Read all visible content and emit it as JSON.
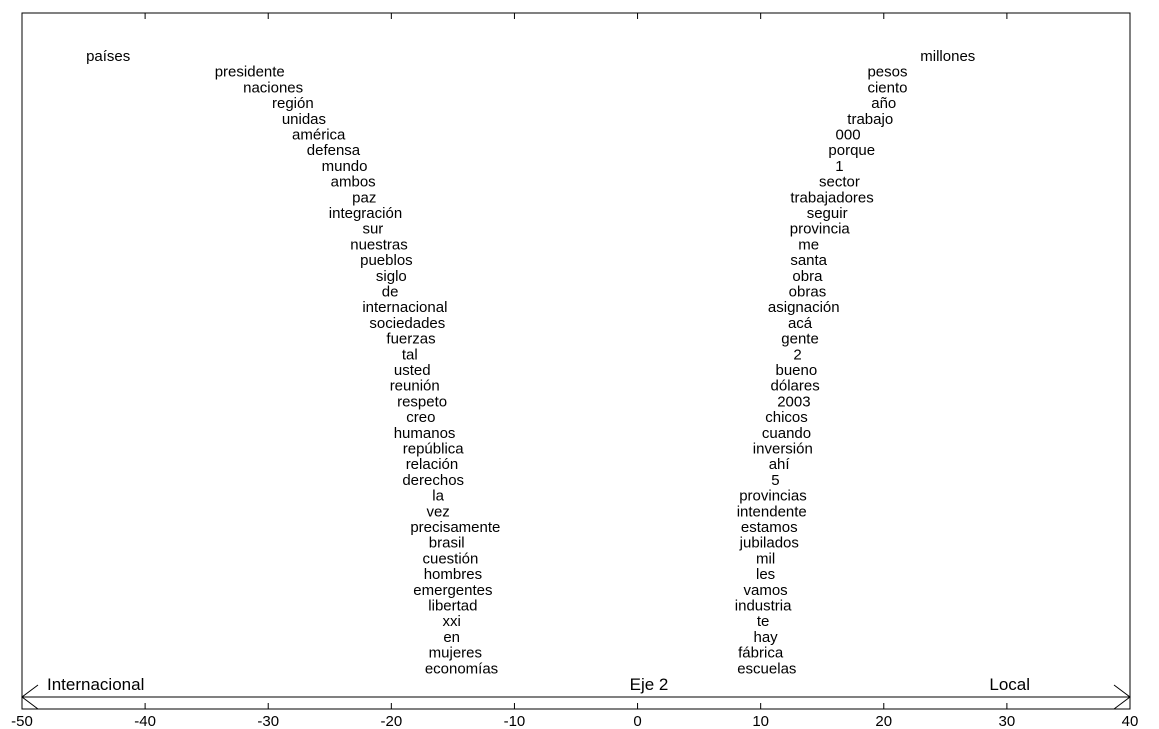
{
  "chart_data": {
    "type": "scatter",
    "xlabel": "Eje 2",
    "left_pole_label": "Internacional",
    "right_pole_label": "Local",
    "xlim": [
      -50,
      40
    ],
    "x_ticks": [
      "-50",
      "-40",
      "-30",
      "-20",
      "-10",
      "0",
      "10",
      "20",
      "30",
      "40"
    ],
    "grid": false,
    "left_words": [
      {
        "word": "países",
        "x": -43.0
      },
      {
        "word": "presidente",
        "x": -31.5
      },
      {
        "word": "naciones",
        "x": -29.6
      },
      {
        "word": "región",
        "x": -28.0
      },
      {
        "word": "unidas",
        "x": -27.1
      },
      {
        "word": "américa",
        "x": -25.9
      },
      {
        "word": "defensa",
        "x": -24.7
      },
      {
        "word": "mundo",
        "x": -23.8
      },
      {
        "word": "ambos",
        "x": -23.1
      },
      {
        "word": "paz",
        "x": -22.2
      },
      {
        "word": "integración",
        "x": -22.1
      },
      {
        "word": "sur",
        "x": -21.5
      },
      {
        "word": "nuestras",
        "x": -21.0
      },
      {
        "word": "pueblos",
        "x": -20.4
      },
      {
        "word": "siglo",
        "x": -20.0
      },
      {
        "word": "de",
        "x": -20.1
      },
      {
        "word": "internacional",
        "x": -18.9
      },
      {
        "word": "sociedades",
        "x": -18.7
      },
      {
        "word": "fuerzas",
        "x": -18.4
      },
      {
        "word": "tal",
        "x": -18.5
      },
      {
        "word": "usted",
        "x": -18.3
      },
      {
        "word": "reunión",
        "x": -18.1
      },
      {
        "word": "respeto",
        "x": -17.5
      },
      {
        "word": "creo",
        "x": -17.6
      },
      {
        "word": "humanos",
        "x": -17.3
      },
      {
        "word": "república",
        "x": -16.6
      },
      {
        "word": "relación",
        "x": -16.7
      },
      {
        "word": "derechos",
        "x": -16.6
      },
      {
        "word": "la",
        "x": -16.2
      },
      {
        "word": "vez",
        "x": -16.2
      },
      {
        "word": "precisamente",
        "x": -14.8
      },
      {
        "word": "brasil",
        "x": -15.5
      },
      {
        "word": "cuestión",
        "x": -15.2
      },
      {
        "word": "hombres",
        "x": -15.0
      },
      {
        "word": "emergentes",
        "x": -15.0
      },
      {
        "word": "libertad",
        "x": -15.0
      },
      {
        "word": "xxi",
        "x": -15.1
      },
      {
        "word": "en",
        "x": -15.1
      },
      {
        "word": "mujeres",
        "x": -14.8
      },
      {
        "word": "economías",
        "x": -14.3
      }
    ],
    "right_words": [
      {
        "word": "millones",
        "x": 25.2
      },
      {
        "word": "pesos",
        "x": 20.3
      },
      {
        "word": "ciento",
        "x": 20.3
      },
      {
        "word": "año",
        "x": 20.0
      },
      {
        "word": "trabajo",
        "x": 18.9
      },
      {
        "word": "000",
        "x": 17.1
      },
      {
        "word": "porque",
        "x": 17.4
      },
      {
        "word": "1",
        "x": 16.4
      },
      {
        "word": "sector",
        "x": 16.4
      },
      {
        "word": "trabajadores",
        "x": 15.8
      },
      {
        "word": "seguir",
        "x": 15.4
      },
      {
        "word": "provincia",
        "x": 14.8
      },
      {
        "word": "me",
        "x": 13.9
      },
      {
        "word": "santa",
        "x": 13.9
      },
      {
        "word": "obra",
        "x": 13.8
      },
      {
        "word": "obras",
        "x": 13.8
      },
      {
        "word": "asignación",
        "x": 13.5
      },
      {
        "word": "acá",
        "x": 13.2
      },
      {
        "word": "gente",
        "x": 13.2
      },
      {
        "word": "2",
        "x": 13.0
      },
      {
        "word": "bueno",
        "x": 12.9
      },
      {
        "word": "dólares",
        "x": 12.8
      },
      {
        "word": "2003",
        "x": 12.7
      },
      {
        "word": "chicos",
        "x": 12.1
      },
      {
        "word": "cuando",
        "x": 12.1
      },
      {
        "word": "inversión",
        "x": 11.8
      },
      {
        "word": "ahí",
        "x": 11.5
      },
      {
        "word": "5",
        "x": 11.2
      },
      {
        "word": "provincias",
        "x": 11.0
      },
      {
        "word": "intendente",
        "x": 10.9
      },
      {
        "word": "estamos",
        "x": 10.7
      },
      {
        "word": "jubilados",
        "x": 10.7
      },
      {
        "word": "mil",
        "x": 10.4
      },
      {
        "word": "les",
        "x": 10.4
      },
      {
        "word": "vamos",
        "x": 10.4
      },
      {
        "word": "industria",
        "x": 10.2
      },
      {
        "word": "te",
        "x": 10.2
      },
      {
        "word": "hay",
        "x": 10.4
      },
      {
        "word": "fábrica",
        "x": 10.0
      },
      {
        "word": "escuelas",
        "x": 10.5
      }
    ]
  }
}
